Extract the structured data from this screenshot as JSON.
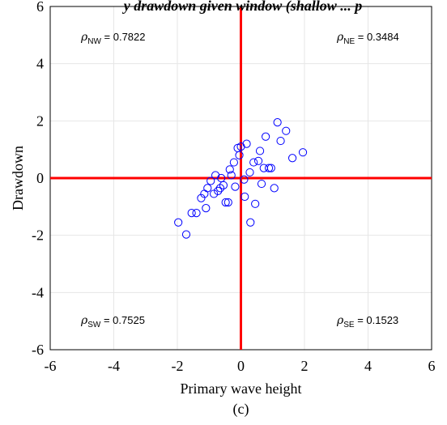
{
  "chart_data": {
    "type": "scatter",
    "title": "y drawdown given window (shallow ... p",
    "xlabel": "Primary wave height",
    "ylabel": "Drawdown",
    "caption": "(c)",
    "xlim": [
      -6,
      6
    ],
    "ylim": [
      -6,
      6
    ],
    "xticks": [
      -6,
      -4,
      -2,
      0,
      2,
      4,
      6
    ],
    "yticks": [
      6,
      4,
      2,
      0,
      -2,
      -4,
      -6
    ],
    "grid": true,
    "quadrant_lines": {
      "x": 0,
      "y": 0,
      "color": "#ff0000"
    },
    "marker_color": "#0000ff",
    "annotations": [
      {
        "key": "nw",
        "symbol": "ρ",
        "sub": "NW",
        "value": " = 0.7822"
      },
      {
        "key": "ne",
        "symbol": "ρ",
        "sub": "NE",
        "value": " = 0.3484"
      },
      {
        "key": "sw",
        "symbol": "ρ",
        "sub": "SW",
        "value": " = 0.7525"
      },
      {
        "key": "se",
        "symbol": "ρ",
        "sub": "SE",
        "value": " = 0.1523"
      }
    ],
    "points": [
      {
        "x": -1.97,
        "y": -1.55
      },
      {
        "x": -1.72,
        "y": -1.97
      },
      {
        "x": -1.55,
        "y": -1.22
      },
      {
        "x": -1.4,
        "y": -1.22
      },
      {
        "x": -1.25,
        "y": -0.7
      },
      {
        "x": -1.15,
        "y": -0.55
      },
      {
        "x": -1.1,
        "y": -1.05
      },
      {
        "x": -1.05,
        "y": -0.35
      },
      {
        "x": -0.95,
        "y": -0.1
      },
      {
        "x": -0.85,
        "y": -0.55
      },
      {
        "x": -0.8,
        "y": 0.1
      },
      {
        "x": -0.72,
        "y": -0.45
      },
      {
        "x": -0.65,
        "y": -0.35
      },
      {
        "x": -0.62,
        "y": 0.0
      },
      {
        "x": -0.55,
        "y": -0.25
      },
      {
        "x": -0.48,
        "y": -0.85
      },
      {
        "x": -0.4,
        "y": -0.85
      },
      {
        "x": -0.35,
        "y": 0.3
      },
      {
        "x": -0.3,
        "y": 0.1
      },
      {
        "x": -0.22,
        "y": 0.55
      },
      {
        "x": -0.18,
        "y": -0.3
      },
      {
        "x": -0.1,
        "y": 1.05
      },
      {
        "x": -0.05,
        "y": 0.8
      },
      {
        "x": 0.0,
        "y": 1.1
      },
      {
        "x": 0.1,
        "y": -0.05
      },
      {
        "x": 0.12,
        "y": -0.65
      },
      {
        "x": 0.18,
        "y": 1.2
      },
      {
        "x": 0.28,
        "y": 0.2
      },
      {
        "x": 0.3,
        "y": -1.55
      },
      {
        "x": 0.4,
        "y": 0.55
      },
      {
        "x": 0.45,
        "y": -0.9
      },
      {
        "x": 0.55,
        "y": 0.6
      },
      {
        "x": 0.6,
        "y": 0.95
      },
      {
        "x": 0.65,
        "y": -0.2
      },
      {
        "x": 0.72,
        "y": 0.35
      },
      {
        "x": 0.78,
        "y": 1.45
      },
      {
        "x": 0.88,
        "y": 0.35
      },
      {
        "x": 0.95,
        "y": 0.35
      },
      {
        "x": 1.05,
        "y": -0.35
      },
      {
        "x": 1.15,
        "y": 1.95
      },
      {
        "x": 1.25,
        "y": 1.3
      },
      {
        "x": 1.42,
        "y": 1.65
      },
      {
        "x": 1.62,
        "y": 0.7
      },
      {
        "x": 1.95,
        "y": 0.9
      }
    ]
  }
}
